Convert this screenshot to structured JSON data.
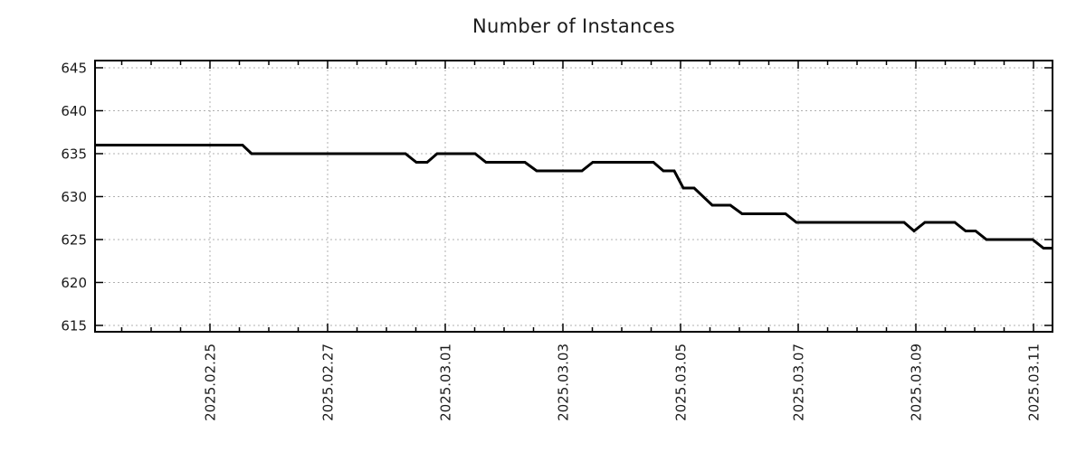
{
  "title": "Number of Instances",
  "colors": {
    "background": "#ffffff",
    "text": "#1a1a1a",
    "axis_border": "#000000",
    "grid": "#b0b0b0",
    "series_line": "#000000"
  },
  "chart_data": {
    "type": "line",
    "title": "Number of Instances",
    "xlabel": "",
    "ylabel": "",
    "legend": "none",
    "grid": "dotted",
    "x_unit": "days since 2025-02-25 00:00",
    "xlim": [
      -1.954,
      14.323
    ],
    "ylim": [
      614.26,
      645.84
    ],
    "y_ticks": [
      615,
      620,
      625,
      630,
      635,
      640,
      645
    ],
    "x_ticks": [
      {
        "pos": 0,
        "label": "2025.02.25"
      },
      {
        "pos": 2,
        "label": "2025.02.27"
      },
      {
        "pos": 4,
        "label": "2025.03.01"
      },
      {
        "pos": 6,
        "label": "2025.03.03"
      },
      {
        "pos": 8,
        "label": "2025.03.05"
      },
      {
        "pos": 10,
        "label": "2025.03.07"
      },
      {
        "pos": 12,
        "label": "2025.03.09"
      },
      {
        "pos": 14,
        "label": "2025.03.11"
      }
    ],
    "x_minor_tick_interval": 0.5,
    "series": [
      {
        "name": "instances",
        "color": "#000000",
        "width": 3,
        "points": [
          [
            -1.954,
            636
          ],
          [
            0.554,
            636
          ],
          [
            0.708,
            635
          ],
          [
            3.323,
            635
          ],
          [
            3.508,
            634
          ],
          [
            3.692,
            634
          ],
          [
            3.862,
            635
          ],
          [
            4.508,
            635
          ],
          [
            4.692,
            634
          ],
          [
            5.354,
            634
          ],
          [
            5.554,
            633
          ],
          [
            6.323,
            633
          ],
          [
            6.508,
            634
          ],
          [
            7.538,
            634
          ],
          [
            7.708,
            633
          ],
          [
            7.892,
            633
          ],
          [
            8.046,
            631
          ],
          [
            8.231,
            631
          ],
          [
            8.538,
            629
          ],
          [
            8.846,
            629
          ],
          [
            9.046,
            628
          ],
          [
            9.785,
            628
          ],
          [
            9.969,
            627
          ],
          [
            11.8,
            627
          ],
          [
            11.969,
            626
          ],
          [
            12.154,
            627
          ],
          [
            12.662,
            627
          ],
          [
            12.846,
            626
          ],
          [
            13.015,
            626
          ],
          [
            13.2,
            625
          ],
          [
            13.985,
            625
          ],
          [
            14.169,
            624
          ],
          [
            14.323,
            624
          ]
        ]
      }
    ]
  }
}
